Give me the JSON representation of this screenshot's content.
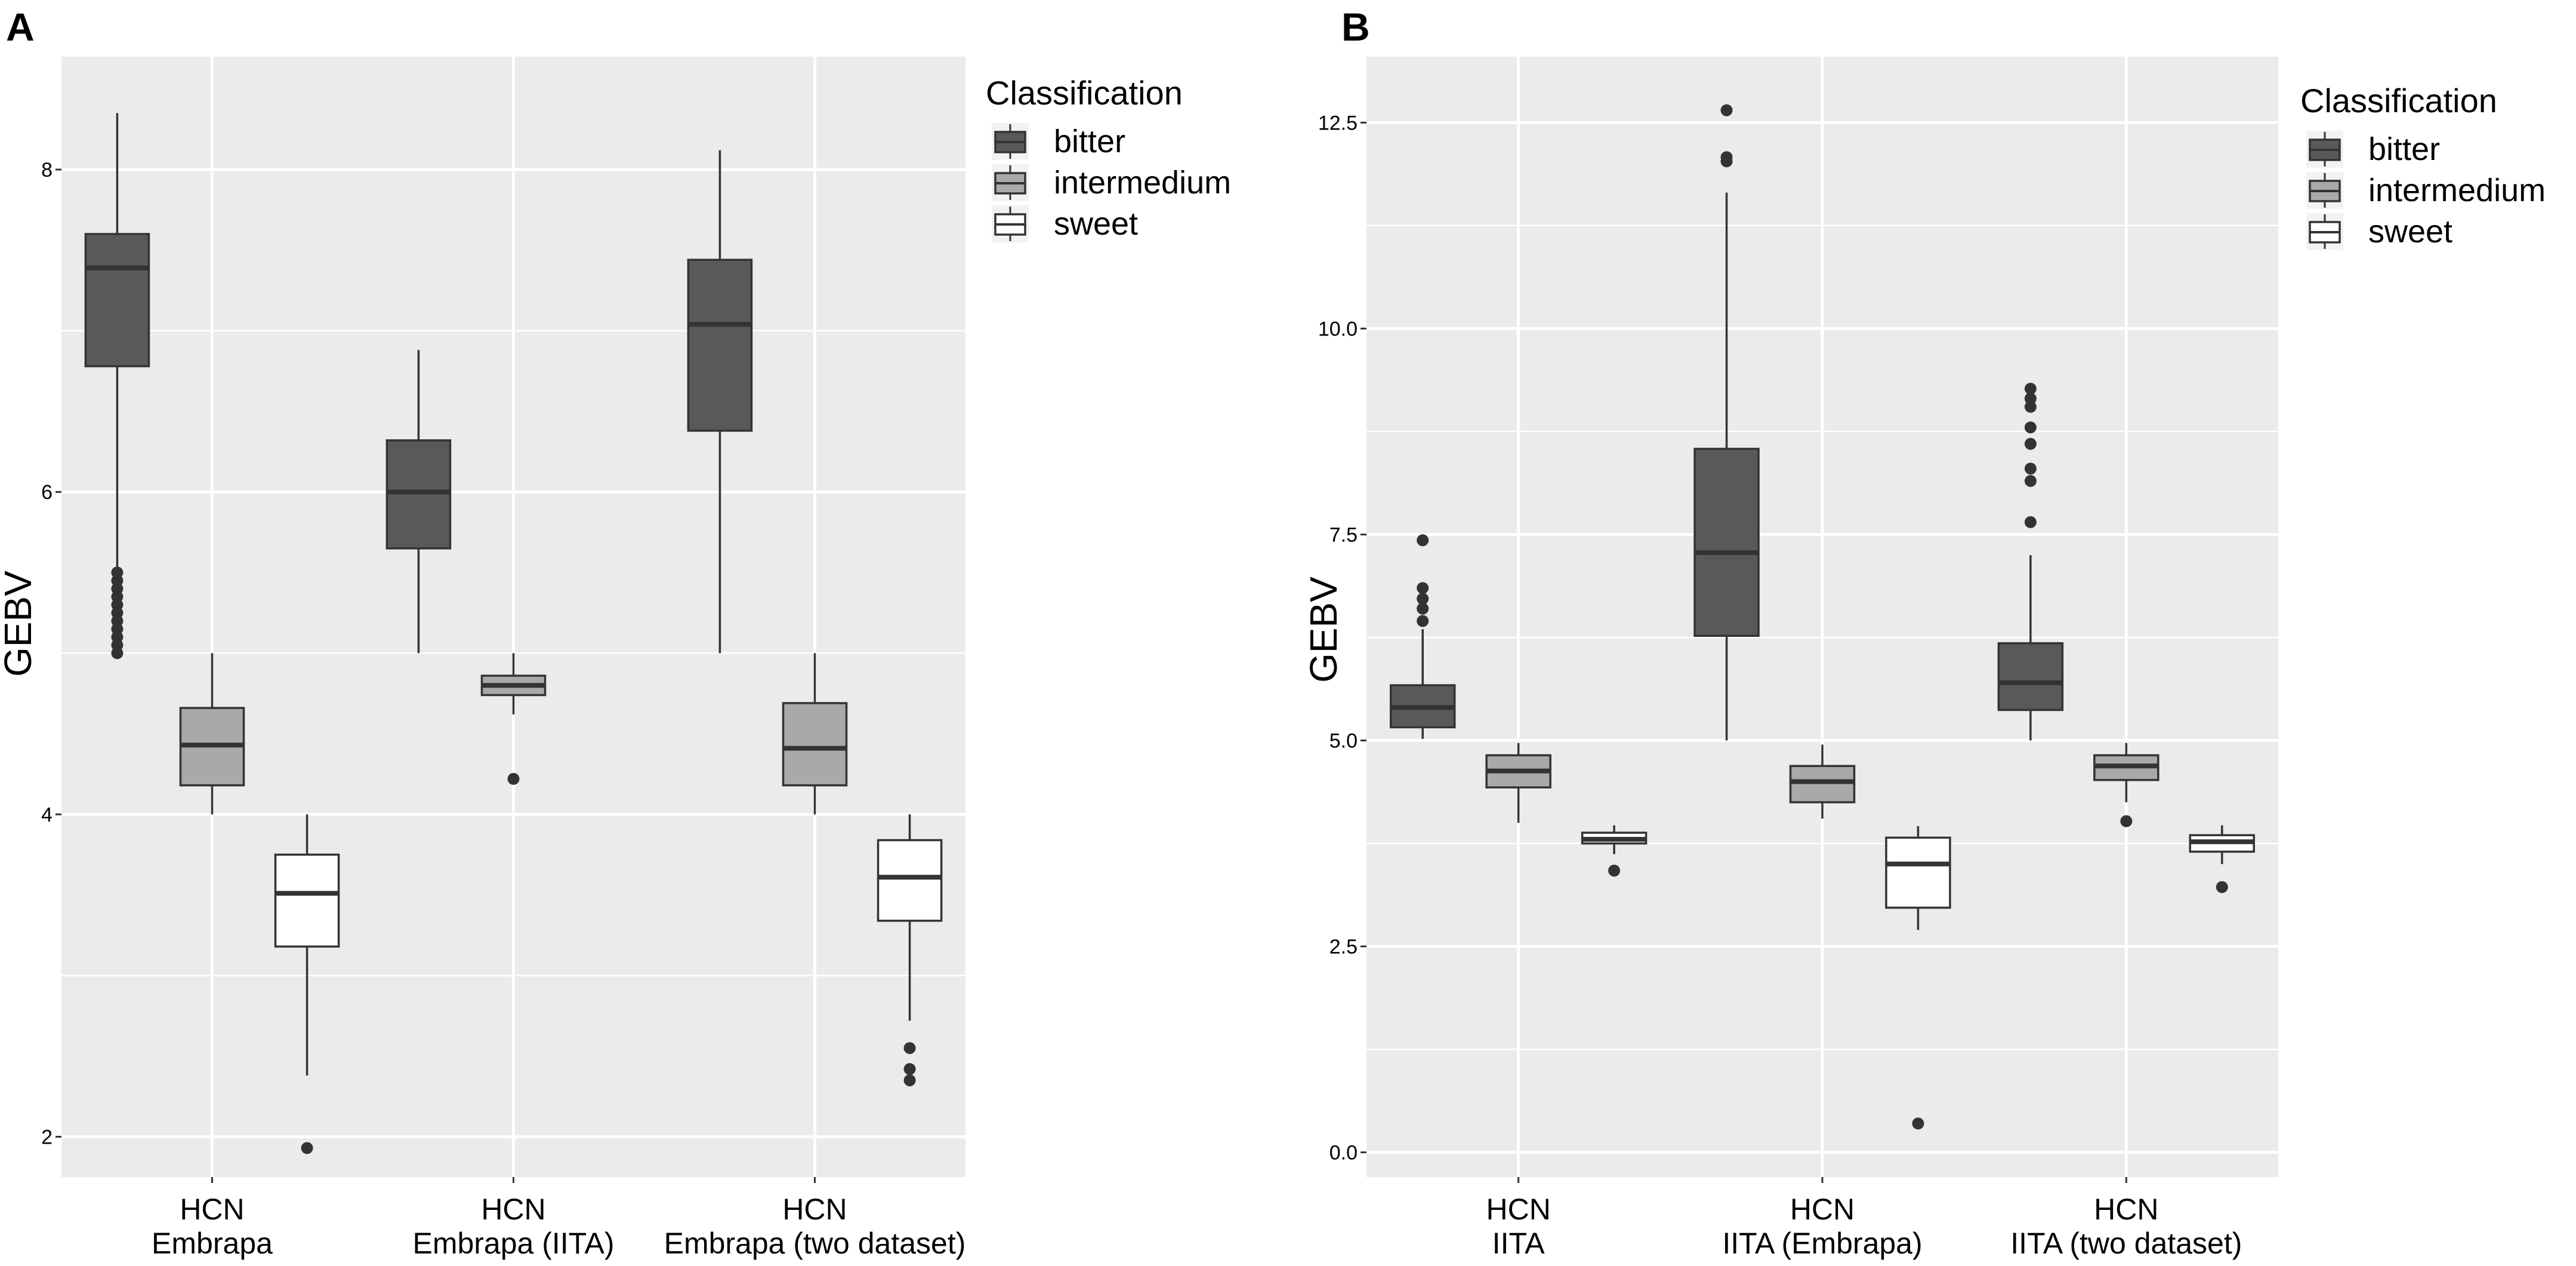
{
  "figure": {
    "legend_title": "Classification",
    "legend_entries": [
      "bitter",
      "intermedium",
      "sweet"
    ],
    "colors": {
      "panel_bg": "#ebebeb",
      "grid": "#ffffff",
      "bitter": "#595959",
      "intermedium": "#a9a9a9",
      "sweet": "#ffffff",
      "stroke": "#333333",
      "text": "#000000",
      "tick_text": "#4d4d4d"
    }
  },
  "chart_data": [
    {
      "panel": "A",
      "type": "boxplot",
      "ylabel": "GEBV",
      "xlabel": "",
      "ylim": [
        1.75,
        8.7
      ],
      "yticks": [
        2,
        4,
        6,
        8
      ],
      "ytick_labels": [
        "2",
        "4",
        "6",
        "8"
      ],
      "categories": [
        [
          "HCN",
          "Embrapa"
        ],
        [
          "HCN",
          "Embrapa (IITA)"
        ],
        [
          "HCN",
          "Embrapa (two dataset)"
        ]
      ],
      "legend": {
        "title": "Classification",
        "position": "right"
      },
      "series": [
        {
          "name": "bitter",
          "values": [
            {
              "min": 5.5,
              "q1": 6.78,
              "median": 7.39,
              "q3": 7.6,
              "max": 8.35,
              "outliers": [
                5.0,
                5.05,
                5.1,
                5.15,
                5.2,
                5.25,
                5.3,
                5.35,
                5.4,
                5.45,
                5.5
              ]
            },
            {
              "min": 5.0,
              "q1": 5.65,
              "median": 6.0,
              "q3": 6.32,
              "max": 6.88,
              "outliers": []
            },
            {
              "min": 5.0,
              "q1": 6.38,
              "median": 7.04,
              "q3": 7.44,
              "max": 8.12,
              "outliers": []
            }
          ]
        },
        {
          "name": "intermedium",
          "values": [
            {
              "min": 4.0,
              "q1": 4.18,
              "median": 4.43,
              "q3": 4.66,
              "max": 5.0,
              "outliers": []
            },
            {
              "min": 4.62,
              "q1": 4.74,
              "median": 4.8,
              "q3": 4.86,
              "max": 5.0,
              "outliers": [
                4.22
              ]
            },
            {
              "min": 4.0,
              "q1": 4.18,
              "median": 4.41,
              "q3": 4.69,
              "max": 5.0,
              "outliers": []
            }
          ]
        },
        {
          "name": "sweet",
          "values": [
            {
              "min": 2.38,
              "q1": 3.18,
              "median": 3.51,
              "q3": 3.75,
              "max": 4.0,
              "outliers": [
                1.93
              ]
            },
            null,
            {
              "min": 2.72,
              "q1": 3.34,
              "median": 3.61,
              "q3": 3.84,
              "max": 4.0,
              "outliers": [
                2.35,
                2.42,
                2.55
              ]
            }
          ]
        }
      ]
    },
    {
      "panel": "B",
      "type": "boxplot",
      "ylabel": "GEBV",
      "xlabel": "",
      "ylim": [
        -0.3,
        13.3
      ],
      "yticks": [
        0,
        2.5,
        5,
        7.5,
        10,
        12.5
      ],
      "ytick_labels": [
        "0.0",
        "2.5",
        "5.0",
        "7.5",
        "10.0",
        "12.5"
      ],
      "categories": [
        [
          "HCN",
          "IITA"
        ],
        [
          "HCN",
          "IITA (Embrapa)"
        ],
        [
          "HCN",
          "IITA (two dataset)"
        ]
      ],
      "legend": {
        "title": "Classification",
        "position": "right"
      },
      "series": [
        {
          "name": "bitter",
          "values": [
            {
              "min": 5.02,
              "q1": 5.16,
              "median": 5.4,
              "q3": 5.67,
              "max": 6.35,
              "outliers": [
                6.45,
                6.6,
                6.72,
                6.85,
                7.43
              ]
            },
            {
              "min": 5.0,
              "q1": 6.27,
              "median": 7.28,
              "q3": 8.54,
              "max": 11.65,
              "outliers": [
                12.03,
                12.08,
                12.65
              ]
            },
            {
              "min": 5.0,
              "q1": 5.37,
              "median": 5.7,
              "q3": 6.18,
              "max": 7.25,
              "outliers": [
                7.65,
                8.15,
                8.3,
                8.6,
                8.8,
                9.05,
                9.15,
                9.27
              ]
            }
          ]
        },
        {
          "name": "intermedium",
          "values": [
            {
              "min": 4.0,
              "q1": 4.43,
              "median": 4.63,
              "q3": 4.82,
              "max": 4.97,
              "outliers": []
            },
            {
              "min": 4.05,
              "q1": 4.25,
              "median": 4.5,
              "q3": 4.69,
              "max": 4.95,
              "outliers": []
            },
            {
              "min": 4.25,
              "q1": 4.52,
              "median": 4.69,
              "q3": 4.82,
              "max": 4.97,
              "outliers": [
                4.02
              ]
            }
          ]
        },
        {
          "name": "sweet",
          "values": [
            {
              "min": 3.62,
              "q1": 3.75,
              "median": 3.8,
              "q3": 3.88,
              "max": 3.97,
              "outliers": [
                3.42
              ]
            },
            {
              "min": 2.7,
              "q1": 2.97,
              "median": 3.5,
              "q3": 3.82,
              "max": 3.96,
              "outliers": [
                0.35
              ]
            },
            {
              "min": 3.5,
              "q1": 3.65,
              "median": 3.77,
              "q3": 3.85,
              "max": 3.97,
              "outliers": [
                3.22
              ]
            }
          ]
        }
      ]
    }
  ]
}
